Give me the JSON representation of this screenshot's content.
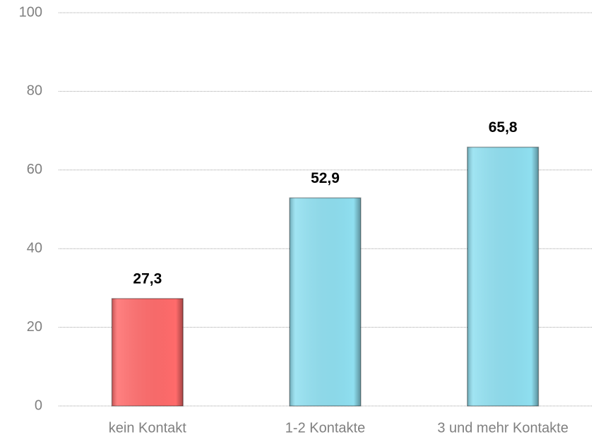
{
  "chart_data": {
    "type": "bar",
    "categories": [
      "kein Kontakt",
      "1-2 Kontakte",
      "3 und mehr Kontakte"
    ],
    "values": [
      27.3,
      52.9,
      65.8
    ],
    "value_labels": [
      "27,3",
      "52,9",
      "65,8"
    ],
    "colors": [
      "#ff6b6b",
      "#8fdff0",
      "#8fdff0"
    ],
    "ylim": [
      0,
      100
    ],
    "yticks": [
      0,
      20,
      40,
      60,
      80,
      100
    ],
    "grid": true
  }
}
